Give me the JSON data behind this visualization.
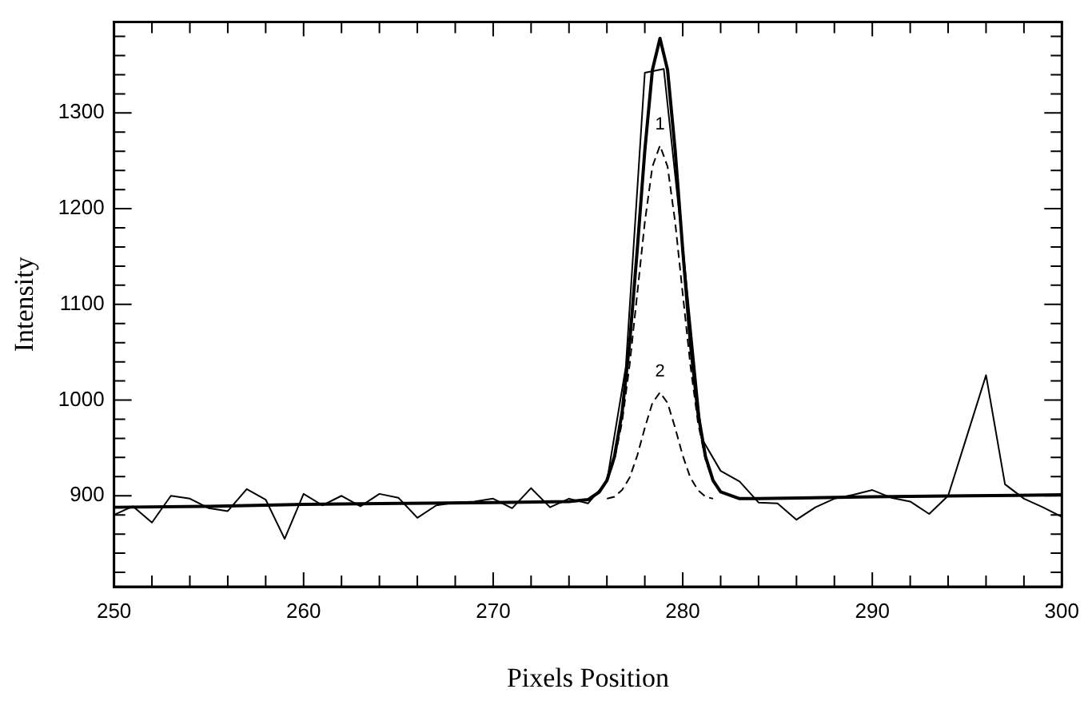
{
  "chart_data": {
    "type": "line",
    "xlabel": "Pixels Position",
    "ylabel": "Intensity",
    "xlim": [
      250,
      300
    ],
    "ylim": [
      805,
      1395
    ],
    "xticks": [
      250,
      {
        "value": 252,
        "label": null
      },
      {
        "value": 254,
        "label": null
      },
      {
        "value": 256,
        "label": null
      },
      {
        "value": 258,
        "label": null
      },
      260,
      {
        "value": 262,
        "label": null
      },
      {
        "value": 264,
        "label": null
      },
      {
        "value": 266,
        "label": null
      },
      {
        "value": 268,
        "label": null
      },
      270,
      {
        "value": 272,
        "label": null
      },
      {
        "value": 274,
        "label": null
      },
      {
        "value": 276,
        "label": null
      },
      {
        "value": 278,
        "label": null
      },
      280,
      {
        "value": 282,
        "label": null
      },
      {
        "value": 284,
        "label": null
      },
      {
        "value": 286,
        "label": null
      },
      {
        "value": 288,
        "label": null
      },
      290,
      {
        "value": 292,
        "label": null
      },
      {
        "value": 294,
        "label": null
      },
      {
        "value": 296,
        "label": null
      },
      {
        "value": 298,
        "label": null
      },
      300
    ],
    "yticks": [
      {
        "value": 820,
        "label": null
      },
      {
        "value": 840,
        "label": null
      },
      {
        "value": 860,
        "label": null
      },
      {
        "value": 880,
        "label": null
      },
      900,
      {
        "value": 920,
        "label": null
      },
      {
        "value": 940,
        "label": null
      },
      {
        "value": 960,
        "label": null
      },
      {
        "value": 980,
        "label": null
      },
      1000,
      {
        "value": 1020,
        "label": null
      },
      {
        "value": 1040,
        "label": null
      },
      {
        "value": 1060,
        "label": null
      },
      {
        "value": 1080,
        "label": null
      },
      1100,
      {
        "value": 1120,
        "label": null
      },
      {
        "value": 1140,
        "label": null
      },
      {
        "value": 1160,
        "label": null
      },
      {
        "value": 1180,
        "label": null
      },
      1200,
      {
        "value": 1220,
        "label": null
      },
      {
        "value": 1240,
        "label": null
      },
      {
        "value": 1260,
        "label": null
      },
      {
        "value": 1280,
        "label": null
      },
      1300,
      {
        "value": 1320,
        "label": null
      },
      {
        "value": 1340,
        "label": null
      },
      {
        "value": 1360,
        "label": null
      },
      {
        "value": 1380,
        "label": null
      }
    ],
    "grid": false,
    "legend": false,
    "marker": "none",
    "series": [
      {
        "color": "#000000",
        "line_style": "solid",
        "x": [
          250,
          251,
          252,
          253,
          254,
          255,
          256,
          257,
          258,
          259,
          260,
          261,
          262,
          263,
          264,
          265,
          266,
          267,
          268,
          269,
          270,
          271,
          272,
          273,
          274,
          275,
          276,
          277,
          278,
          279,
          280,
          281,
          282,
          283,
          284,
          285,
          286,
          287,
          288,
          289,
          290,
          291,
          292,
          293,
          294,
          295,
          296,
          297,
          298,
          299,
          300
        ],
        "values": [
          880,
          889,
          872,
          900,
          897,
          887,
          884,
          907,
          896,
          855,
          902,
          890,
          900,
          889,
          902,
          898,
          877,
          890,
          893,
          894,
          897,
          887,
          908,
          888,
          897,
          892,
          915,
          1035,
          1342,
          1346,
          1161,
          960,
          926,
          915,
          893,
          892,
          875,
          888,
          897,
          901,
          906,
          898,
          894,
          881,
          900,
          963,
          1026,
          912,
          897,
          888,
          878
        ]
      },
      {
        "color": "#000000",
        "line_style": "solid",
        "x": [
          250,
          255,
          260,
          265,
          270,
          274,
          275,
          275.6,
          276.0,
          276.4,
          276.8,
          277.2,
          277.6,
          278.0,
          278.4,
          278.8,
          279.2,
          279.6,
          280.0,
          280.4,
          280.8,
          281.2,
          281.6,
          282.0,
          283,
          284,
          290,
          295,
          300
        ],
        "values": [
          888,
          889,
          891,
          892,
          893,
          894,
          896,
          904,
          916,
          941,
          987,
          1060,
          1157,
          1261,
          1345,
          1378,
          1345,
          1261,
          1157,
          1060,
          987,
          941,
          916,
          904,
          897,
          897,
          899,
          900,
          901
        ]
      },
      {
        "color": "#000000",
        "line_style": "dashed",
        "x": [
          275.6,
          276.0,
          276.4,
          276.8,
          277.2,
          277.6,
          278.0,
          278.4,
          278.8,
          279.2,
          279.6,
          280.0,
          280.4,
          280.8,
          281.2,
          281.6,
          282.0
        ],
        "values": [
          904,
          915,
          938,
          977,
          1037,
          1111,
          1186,
          1244,
          1266,
          1244,
          1186,
          1111,
          1037,
          977,
          938,
          915,
          904
        ]
      },
      {
        "color": "#000000",
        "line_style": "dashed",
        "x": [
          276.0,
          276.4,
          276.8,
          277.2,
          277.6,
          278.0,
          278.4,
          278.8,
          279.2,
          279.6,
          280.0,
          280.4,
          280.8,
          281.2,
          281.6
        ],
        "values": [
          897,
          899,
          906,
          919,
          942,
          971,
          997,
          1008,
          997,
          971,
          942,
          919,
          906,
          899,
          897
        ]
      }
    ],
    "annotations": [
      "1",
      "2"
    ]
  }
}
